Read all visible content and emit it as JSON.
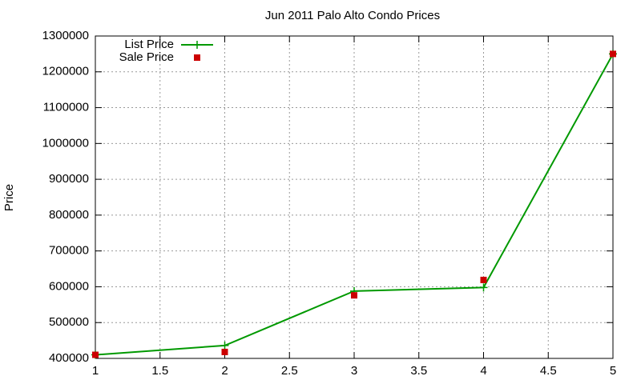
{
  "chart_data": {
    "type": "line",
    "title": "Jun 2011 Palo Alto Condo Prices",
    "y_label": "Price",
    "x": [
      1,
      2,
      3,
      4,
      5
    ],
    "series": [
      {
        "name": "List Price",
        "color": "#009900",
        "marker": "plus",
        "line": true,
        "values": [
          410000,
          436000,
          588000,
          598000,
          1250000
        ]
      },
      {
        "name": "Sale Price",
        "color": "#cc0000",
        "marker": "square",
        "line": false,
        "values": [
          410000,
          418000,
          576000,
          619000,
          1250000
        ]
      }
    ],
    "xlim": [
      1,
      5
    ],
    "xticks": [
      1,
      1.5,
      2,
      2.5,
      3,
      3.5,
      4,
      4.5,
      5
    ],
    "ylim": [
      400000,
      1300000
    ],
    "yticks": [
      400000,
      500000,
      600000,
      700000,
      800000,
      900000,
      1000000,
      1100000,
      1200000,
      1300000
    ],
    "grid": true,
    "legend": "top-left"
  }
}
